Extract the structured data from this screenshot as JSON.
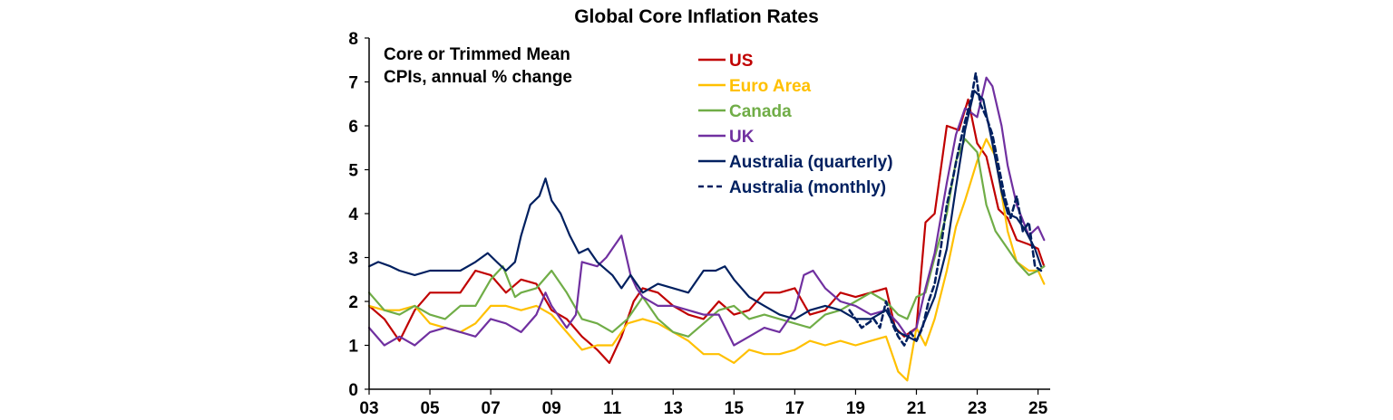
{
  "chart_data": {
    "type": "line",
    "title": "Global Core Inflation Rates",
    "annotation": [
      "Core or Trimmed Mean",
      "CPIs, annual % change"
    ],
    "xlabel": "",
    "ylabel": "",
    "xlim": [
      2003.0,
      2025.4
    ],
    "ylim": [
      0,
      8
    ],
    "x_ticks": [
      2003,
      2005,
      2007,
      2009,
      2011,
      2013,
      2015,
      2017,
      2019,
      2021,
      2023,
      2025
    ],
    "x_tick_labels": [
      "03",
      "05",
      "07",
      "09",
      "11",
      "13",
      "15",
      "17",
      "19",
      "21",
      "23",
      "25"
    ],
    "y_ticks": [
      0,
      1,
      2,
      3,
      4,
      5,
      6,
      7,
      8
    ],
    "y_tick_labels": [
      "0",
      "1",
      "2",
      "3",
      "4",
      "5",
      "6",
      "7",
      "8"
    ],
    "legend_position": "top-center",
    "series": [
      {
        "name": "US",
        "color": "#C00000",
        "dash": "solid",
        "x": [
          2003.0,
          2003.5,
          2004.0,
          2004.5,
          2005.0,
          2005.5,
          2006.0,
          2006.5,
          2007.0,
          2007.5,
          2008.0,
          2008.5,
          2009.0,
          2009.5,
          2010.0,
          2010.5,
          2010.9,
          2011.3,
          2011.7,
          2012.0,
          2012.5,
          2013.0,
          2013.5,
          2014.0,
          2014.5,
          2015.0,
          2015.5,
          2016.0,
          2016.5,
          2017.0,
          2017.5,
          2018.0,
          2018.5,
          2019.0,
          2019.5,
          2020.0,
          2020.3,
          2020.6,
          2021.0,
          2021.3,
          2021.6,
          2022.0,
          2022.4,
          2022.7,
          2023.0,
          2023.3,
          2023.7,
          2024.0,
          2024.3,
          2024.7,
          2025.0,
          2025.2
        ],
        "values": [
          1.9,
          1.6,
          1.1,
          1.8,
          2.2,
          2.2,
          2.2,
          2.7,
          2.6,
          2.2,
          2.5,
          2.4,
          1.8,
          1.6,
          1.2,
          0.9,
          0.6,
          1.2,
          2.0,
          2.3,
          2.2,
          1.9,
          1.7,
          1.6,
          2.0,
          1.7,
          1.8,
          2.2,
          2.2,
          2.3,
          1.7,
          1.8,
          2.2,
          2.1,
          2.2,
          2.3,
          1.4,
          1.2,
          1.4,
          3.8,
          4.0,
          6.0,
          5.9,
          6.6,
          5.6,
          5.3,
          4.1,
          3.9,
          3.4,
          3.3,
          3.2,
          2.8
        ]
      },
      {
        "name": "Euro Area",
        "color": "#FFC000",
        "dash": "solid",
        "x": [
          2003.0,
          2003.5,
          2004.0,
          2004.5,
          2005.0,
          2005.5,
          2006.0,
          2006.5,
          2007.0,
          2007.5,
          2008.0,
          2008.5,
          2009.0,
          2009.5,
          2010.0,
          2010.5,
          2011.0,
          2011.5,
          2012.0,
          2012.5,
          2013.0,
          2013.5,
          2014.0,
          2014.5,
          2015.0,
          2015.5,
          2016.0,
          2016.5,
          2017.0,
          2017.5,
          2018.0,
          2018.5,
          2019.0,
          2019.5,
          2020.0,
          2020.4,
          2020.7,
          2021.0,
          2021.3,
          2021.6,
          2022.0,
          2022.3,
          2022.6,
          2023.0,
          2023.3,
          2023.6,
          2024.0,
          2024.3,
          2024.7,
          2025.0,
          2025.2
        ],
        "values": [
          1.9,
          1.8,
          1.8,
          1.9,
          1.5,
          1.4,
          1.3,
          1.5,
          1.9,
          1.9,
          1.8,
          1.9,
          1.7,
          1.3,
          0.9,
          1.0,
          1.0,
          1.5,
          1.6,
          1.5,
          1.3,
          1.1,
          0.8,
          0.8,
          0.6,
          0.9,
          0.8,
          0.8,
          0.9,
          1.1,
          1.0,
          1.1,
          1.0,
          1.1,
          1.2,
          0.4,
          0.2,
          1.4,
          1.0,
          1.6,
          2.7,
          3.7,
          4.3,
          5.2,
          5.7,
          5.3,
          3.6,
          2.9,
          2.7,
          2.7,
          2.4
        ]
      },
      {
        "name": "Canada",
        "color": "#70AD47",
        "dash": "solid",
        "x": [
          2003.0,
          2003.5,
          2004.0,
          2004.5,
          2005.0,
          2005.5,
          2006.0,
          2006.5,
          2007.0,
          2007.4,
          2007.8,
          2008.0,
          2008.5,
          2009.0,
          2009.5,
          2010.0,
          2010.5,
          2011.0,
          2011.5,
          2012.0,
          2012.5,
          2013.0,
          2013.5,
          2014.0,
          2014.5,
          2015.0,
          2015.5,
          2016.0,
          2016.5,
          2017.0,
          2017.5,
          2018.0,
          2018.5,
          2019.0,
          2019.5,
          2020.0,
          2020.4,
          2020.7,
          2021.0,
          2021.3,
          2021.6,
          2022.0,
          2022.3,
          2022.6,
          2023.0,
          2023.3,
          2023.6,
          2024.0,
          2024.3,
          2024.7,
          2025.0,
          2025.2
        ],
        "values": [
          2.2,
          1.8,
          1.7,
          1.9,
          1.7,
          1.6,
          1.9,
          1.9,
          2.5,
          2.8,
          2.1,
          2.2,
          2.3,
          2.7,
          2.2,
          1.6,
          1.5,
          1.3,
          1.6,
          2.1,
          1.6,
          1.3,
          1.2,
          1.5,
          1.8,
          1.9,
          1.6,
          1.7,
          1.6,
          1.5,
          1.4,
          1.7,
          1.8,
          2.0,
          2.2,
          2.0,
          1.7,
          1.6,
          2.1,
          2.2,
          3.0,
          4.0,
          5.2,
          5.7,
          5.4,
          4.2,
          3.6,
          3.2,
          2.9,
          2.6,
          2.7,
          2.8
        ]
      },
      {
        "name": "UK",
        "color": "#7030A0",
        "dash": "solid",
        "x": [
          2003.0,
          2003.5,
          2004.0,
          2004.5,
          2005.0,
          2005.5,
          2006.0,
          2006.5,
          2007.0,
          2007.5,
          2008.0,
          2008.5,
          2008.8,
          2009.0,
          2009.5,
          2009.8,
          2010.0,
          2010.5,
          2010.8,
          2011.0,
          2011.3,
          2011.6,
          2011.8,
          2012.0,
          2012.5,
          2013.0,
          2013.5,
          2014.0,
          2014.5,
          2015.0,
          2015.5,
          2016.0,
          2016.5,
          2017.0,
          2017.3,
          2017.6,
          2017.8,
          2018.0,
          2018.5,
          2019.0,
          2019.5,
          2020.0,
          2020.4,
          2020.7,
          2021.0,
          2021.3,
          2021.6,
          2022.0,
          2022.3,
          2022.6,
          2023.0,
          2023.3,
          2023.5,
          2023.8,
          2024.0,
          2024.3,
          2024.7,
          2025.0,
          2025.2
        ],
        "values": [
          1.4,
          1.0,
          1.2,
          1.0,
          1.3,
          1.4,
          1.3,
          1.2,
          1.6,
          1.5,
          1.3,
          1.7,
          2.2,
          1.9,
          1.4,
          1.7,
          2.9,
          2.8,
          3.0,
          3.2,
          3.5,
          2.6,
          2.3,
          2.1,
          1.9,
          1.9,
          1.8,
          1.7,
          1.7,
          1.0,
          1.2,
          1.4,
          1.3,
          1.8,
          2.6,
          2.7,
          2.5,
          2.3,
          2.0,
          1.9,
          1.7,
          1.8,
          1.5,
          1.2,
          1.4,
          2.3,
          3.1,
          4.7,
          5.8,
          6.4,
          6.2,
          7.1,
          6.9,
          6.0,
          5.1,
          4.2,
          3.5,
          3.7,
          3.4
        ]
      },
      {
        "name": "Australia (quarterly)",
        "color": "#002060",
        "dash": "solid",
        "x": [
          2003.0,
          2003.3,
          2003.7,
          2004.0,
          2004.5,
          2005.0,
          2005.5,
          2006.0,
          2006.5,
          2006.9,
          2007.2,
          2007.5,
          2007.8,
          2008.0,
          2008.3,
          2008.6,
          2008.8,
          2009.0,
          2009.3,
          2009.6,
          2009.9,
          2010.2,
          2010.5,
          2011.0,
          2011.3,
          2011.6,
          2012.0,
          2012.5,
          2013.0,
          2013.5,
          2014.0,
          2014.4,
          2014.7,
          2015.0,
          2015.5,
          2016.0,
          2016.5,
          2017.0,
          2017.5,
          2018.0,
          2018.5,
          2019.0,
          2019.5,
          2020.0,
          2020.4,
          2020.7,
          2021.0,
          2021.3,
          2021.6,
          2022.0,
          2022.3,
          2022.6,
          2022.9,
          2023.2,
          2023.5,
          2023.8,
          2024.0,
          2024.3,
          2024.6,
          2024.9,
          2025.1
        ],
        "values": [
          2.8,
          2.9,
          2.8,
          2.7,
          2.6,
          2.7,
          2.7,
          2.7,
          2.9,
          3.1,
          2.9,
          2.7,
          2.9,
          3.5,
          4.2,
          4.4,
          4.8,
          4.3,
          4.0,
          3.5,
          3.1,
          3.2,
          2.9,
          2.6,
          2.3,
          2.6,
          2.2,
          2.4,
          2.3,
          2.2,
          2.7,
          2.7,
          2.8,
          2.5,
          2.1,
          1.9,
          1.7,
          1.6,
          1.8,
          1.9,
          1.8,
          1.6,
          1.6,
          1.8,
          1.3,
          1.2,
          1.1,
          1.6,
          2.1,
          3.2,
          4.6,
          5.9,
          6.8,
          6.6,
          5.6,
          4.5,
          4.0,
          3.9,
          3.6,
          3.2,
          2.8
        ]
      },
      {
        "name": "Australia (monthly)",
        "color": "#002060",
        "dash": "dashed",
        "x": [
          2018.8,
          2019.0,
          2019.2,
          2019.4,
          2019.6,
          2019.8,
          2020.0,
          2020.2,
          2020.4,
          2020.6,
          2020.8,
          2021.0,
          2021.2,
          2021.4,
          2021.6,
          2021.8,
          2022.0,
          2022.2,
          2022.4,
          2022.6,
          2022.8,
          2022.95,
          2023.1,
          2023.3,
          2023.5,
          2023.7,
          2023.9,
          2024.1,
          2024.3,
          2024.5,
          2024.7,
          2024.9,
          2025.1
        ],
        "values": [
          1.8,
          1.6,
          1.4,
          1.5,
          1.6,
          1.4,
          2.0,
          1.5,
          1.2,
          1.0,
          1.3,
          1.1,
          1.4,
          2.0,
          2.4,
          3.2,
          4.2,
          4.8,
          5.5,
          6.1,
          6.6,
          7.2,
          6.5,
          6.2,
          5.8,
          5.1,
          4.4,
          3.9,
          4.4,
          3.6,
          3.8,
          2.8,
          2.7
        ]
      }
    ]
  }
}
